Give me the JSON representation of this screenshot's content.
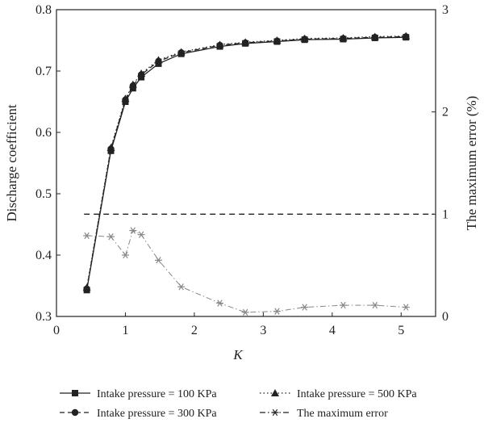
{
  "chart_data": {
    "type": "line",
    "title": "",
    "xlabel": "K",
    "ylabel": "Discharge coefficient",
    "y2label": "The maximum error (%)",
    "xlim": [
      0,
      5.5
    ],
    "ylim": [
      0.3,
      0.8
    ],
    "y2lim": [
      0,
      3
    ],
    "xticks": [
      "0",
      "1",
      "2",
      "3",
      "4",
      "5"
    ],
    "yticks": [
      "0.3",
      "0.4",
      "0.5",
      "0.6",
      "0.7",
      "0.8"
    ],
    "y2ticks": [
      "0",
      "1",
      "2",
      "3"
    ],
    "grid": false,
    "legend_position": "bottom",
    "series": [
      {
        "name": "Intake pressure = 100 KPa",
        "axis": "left",
        "marker": "square",
        "line": "solid",
        "color": "#222222",
        "x": [
          0.44,
          0.79,
          1.0,
          1.11,
          1.23,
          1.48,
          1.81,
          2.37,
          2.74,
          3.2,
          3.6,
          4.16,
          4.62,
          5.07
        ],
        "y": [
          0.343,
          0.57,
          0.65,
          0.672,
          0.69,
          0.712,
          0.728,
          0.74,
          0.745,
          0.748,
          0.751,
          0.752,
          0.754,
          0.755
        ]
      },
      {
        "name": "Intake pressure = 300 KPa",
        "axis": "left",
        "marker": "circle",
        "line": "dashed",
        "color": "#222222",
        "x": [
          0.44,
          0.79,
          1.0,
          1.11,
          1.23,
          1.48,
          1.81,
          2.37,
          2.74,
          3.2,
          3.6,
          4.16,
          4.62,
          5.07
        ],
        "y": [
          0.345,
          0.573,
          0.653,
          0.676,
          0.694,
          0.716,
          0.73,
          0.742,
          0.746,
          0.749,
          0.752,
          0.753,
          0.755,
          0.756
        ]
      },
      {
        "name": "Intake pressure = 500 KPa",
        "axis": "left",
        "marker": "triangle",
        "line": "dotted",
        "color": "#222222",
        "x": [
          0.44,
          0.79,
          1.0,
          1.11,
          1.23,
          1.48,
          1.81,
          2.37,
          2.74,
          3.2,
          3.6,
          4.16,
          4.62,
          5.07
        ],
        "y": [
          0.347,
          0.575,
          0.655,
          0.678,
          0.696,
          0.718,
          0.731,
          0.743,
          0.747,
          0.75,
          0.753,
          0.754,
          0.756,
          0.757
        ]
      },
      {
        "name": "The maximum error",
        "axis": "right",
        "marker": "asterisk",
        "line": "dashdot",
        "color": "#888888",
        "x": [
          0.44,
          0.79,
          1.0,
          1.11,
          1.23,
          1.48,
          1.81,
          2.37,
          2.74,
          3.2,
          3.6,
          4.16,
          4.62,
          5.07
        ],
        "y": [
          0.79,
          0.78,
          0.6,
          0.84,
          0.8,
          0.55,
          0.29,
          0.13,
          0.04,
          0.05,
          0.09,
          0.11,
          0.11,
          0.09
        ]
      }
    ],
    "reference_lines": [
      {
        "axis": "right",
        "value": 1,
        "style": "dashed"
      }
    ]
  }
}
